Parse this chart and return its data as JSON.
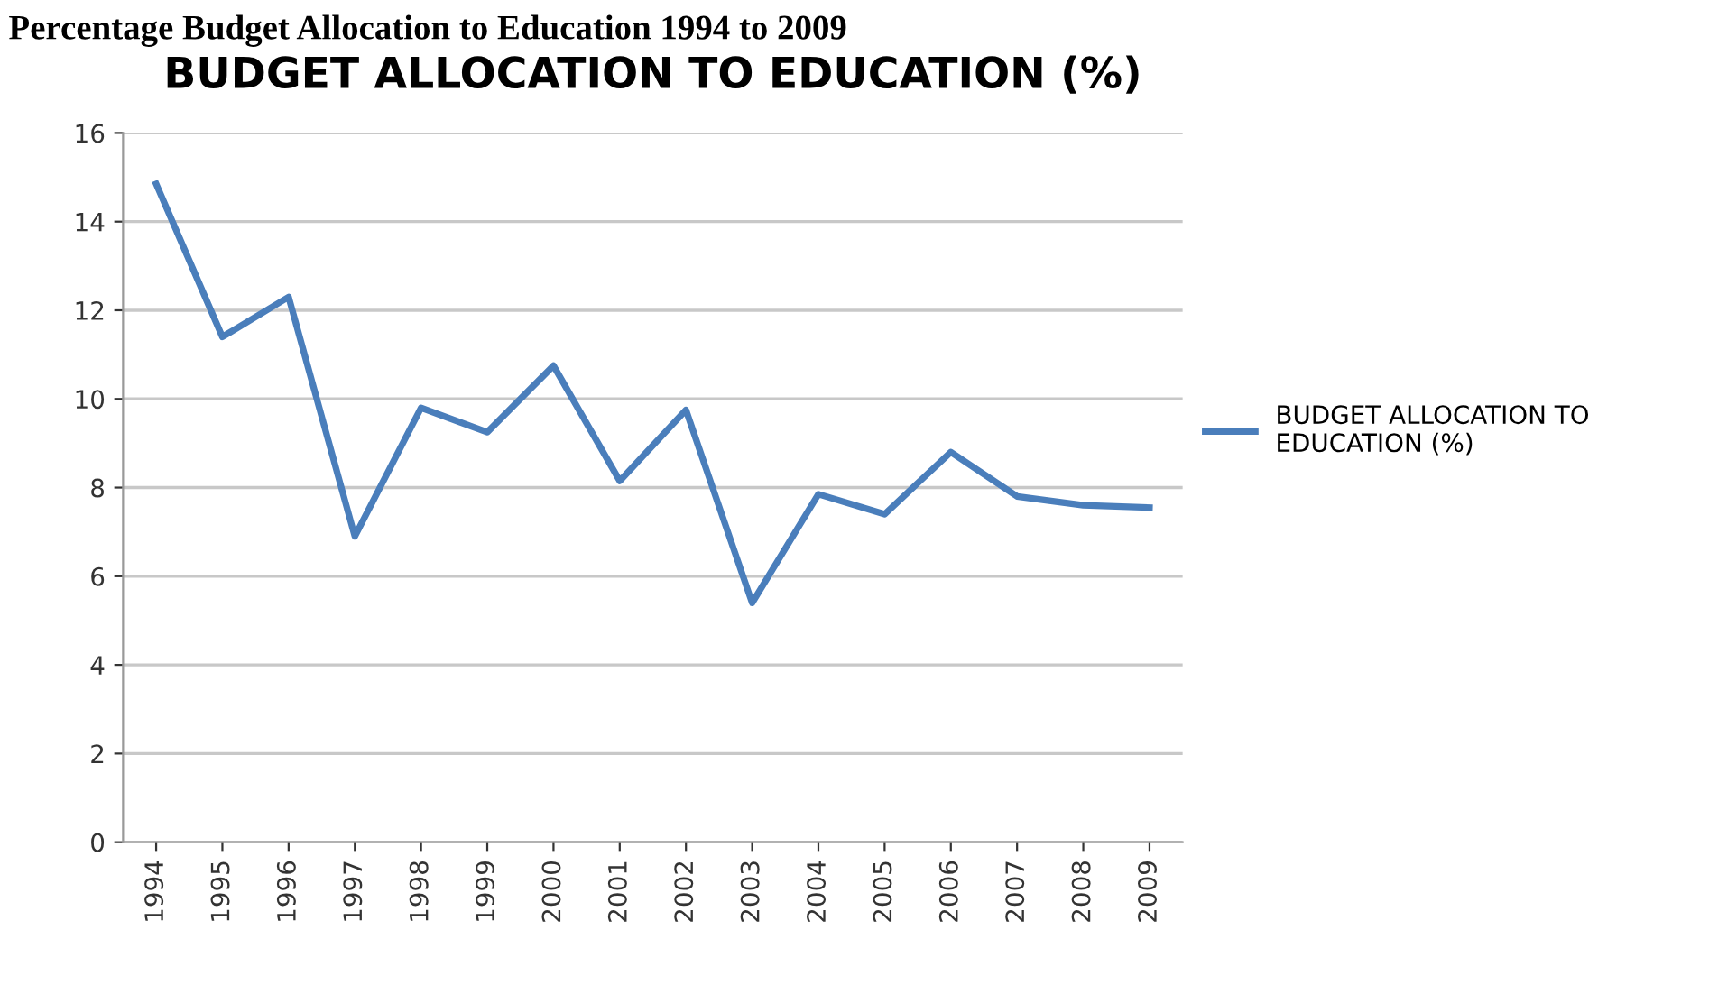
{
  "chart_data": {
    "type": "line",
    "title": "BUDGET ALLOCATION TO EDUCATION (%)",
    "annotations": [
      "Percentage Budget Allocation to Education 1994 to 2009"
    ],
    "categories": [
      "1994",
      "1995",
      "1996",
      "1997",
      "1998",
      "1999",
      "2000",
      "2001",
      "2002",
      "2003",
      "2004",
      "2005",
      "2006",
      "2007",
      "2008",
      "2009"
    ],
    "series": [
      {
        "name": "BUDGET ALLOCATION TO\nEDUCATION (%)",
        "color": "#4a7ebb",
        "values": [
          14.85,
          11.4,
          12.3,
          6.9,
          9.8,
          9.25,
          10.75,
          8.15,
          9.75,
          5.4,
          7.85,
          7.4,
          8.8,
          7.8,
          7.6,
          7.55
        ]
      }
    ],
    "ylim": [
      0,
      16
    ],
    "yticks": [
      0,
      2,
      4,
      6,
      8,
      10,
      12,
      14,
      16
    ],
    "grid": "y",
    "legend": "right",
    "marker": "none",
    "line_style": "solid"
  }
}
